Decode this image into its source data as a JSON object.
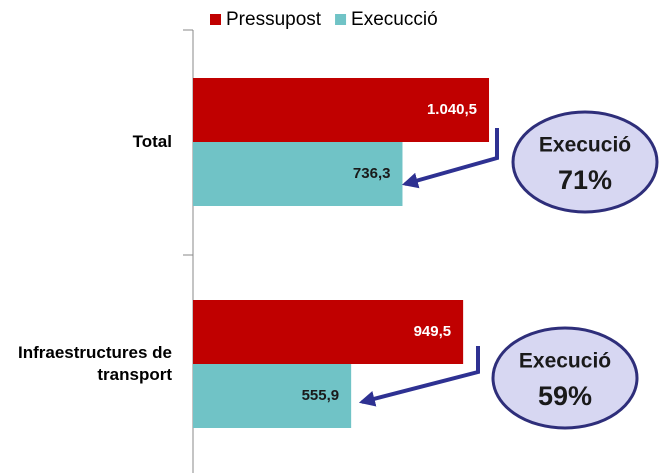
{
  "chart_data": {
    "type": "barh",
    "categories": [
      "Total",
      "Infraestructures de transport"
    ],
    "series": [
      {
        "name": "Pressupost",
        "color": "#c00000",
        "values": [
          1040.5,
          949.5
        ],
        "value_labels": [
          "1.040,5",
          "949,5"
        ],
        "label_color": "#ffffff"
      },
      {
        "name": "Execucció",
        "color": "#70c3c6",
        "values": [
          736.3,
          555.9
        ],
        "value_labels": [
          "736,3",
          "555,9"
        ],
        "label_color": "#1a1a1a"
      }
    ],
    "annotations": [
      {
        "title": "Execució",
        "text": "71%"
      },
      {
        "title": "Execució",
        "text": "59%"
      }
    ],
    "legend": "top"
  }
}
